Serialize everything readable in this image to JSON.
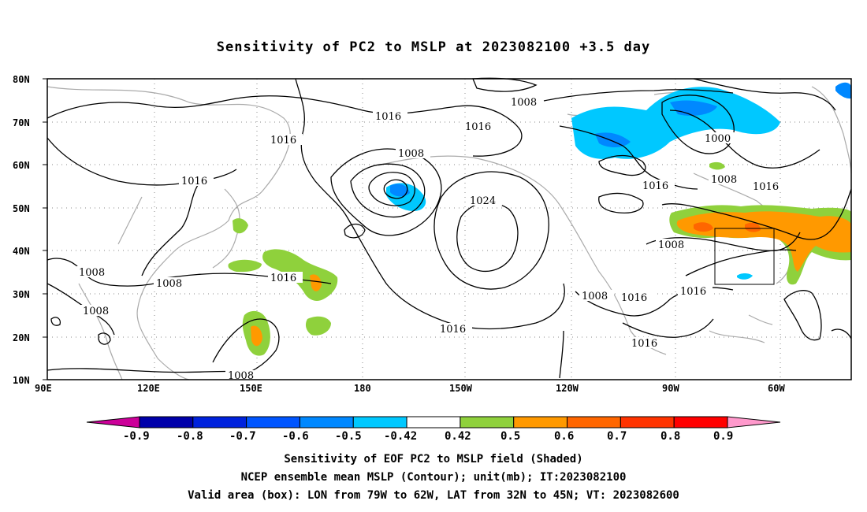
{
  "title": "Sensitivity of PC2 to MSLP at 2023082100 +3.5 day",
  "map": {
    "lat_labels": [
      "80N",
      "70N",
      "60N",
      "50N",
      "40N",
      "30N",
      "20N",
      "10N"
    ],
    "lon_labels": [
      "90E",
      "120E",
      "150E",
      "180",
      "150W",
      "120W",
      "90W",
      "60W"
    ],
    "contour_labels": [
      "1008",
      "1016",
      "1016",
      "1016",
      "1016",
      "1008",
      "1024",
      "1016",
      "1008",
      "1008",
      "1008",
      "1016",
      "1008",
      "1016",
      "1016",
      "1016",
      "1000",
      "1008",
      "1016",
      "1008",
      "1016"
    ],
    "box": {
      "lon_from": "79W",
      "lon_to": "62W",
      "lat_from": "32N",
      "lat_to": "45N"
    }
  },
  "colorbar": {
    "labels": [
      "-0.9",
      "-0.8",
      "-0.7",
      "-0.6",
      "-0.5",
      "-0.42",
      "0.42",
      "0.5",
      "0.6",
      "0.7",
      "0.8",
      "0.9"
    ],
    "colors": [
      "#cc0099",
      "#0000aa",
      "#0022dd",
      "#0055ff",
      "#0088ff",
      "#00c8ff",
      "#ffffff",
      "#8fd13c",
      "#ff9900",
      "#ff6600",
      "#ff3300",
      "#ff0000",
      "#ff99cc"
    ]
  },
  "captions": {
    "line1": "Sensitivity of EOF PC2 to MSLP field (Shaded)",
    "line2": "NCEP ensemble mean MSLP (Contour); unit(mb); IT:2023082100",
    "line3": "Valid area (box): LON from 79W to 62W, LAT from 32N to 45N; VT: 2023082600"
  }
}
